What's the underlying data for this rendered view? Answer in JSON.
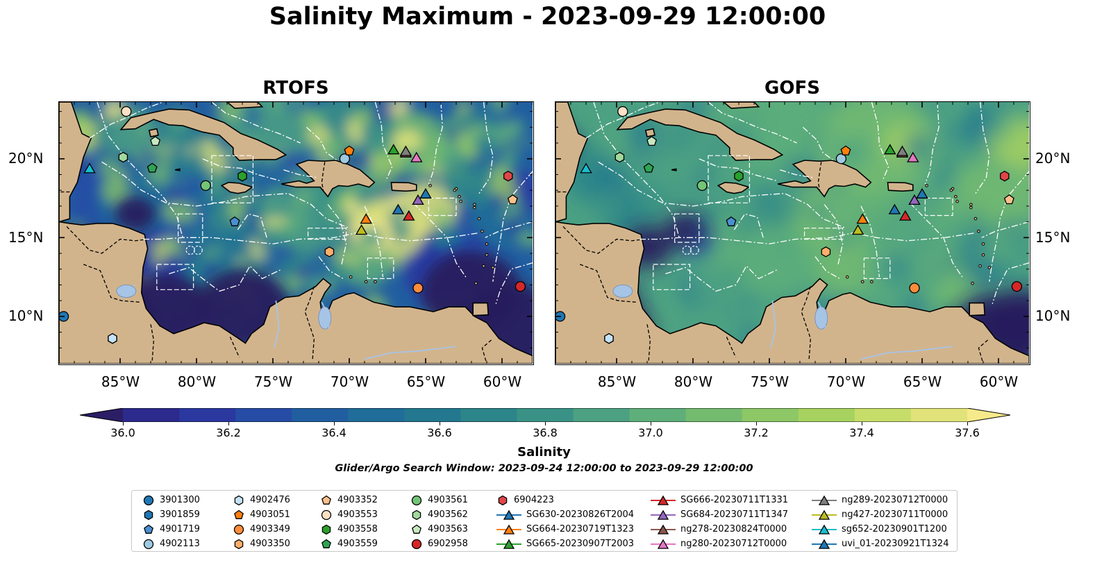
{
  "figure": {
    "title": "Salinity Maximum - 2023-09-29 12:00:00",
    "window_note": "Glider/Argo Search Window: 2023-09-24 12:00:00 to 2023-09-29 12:00:00"
  },
  "panels": [
    {
      "title": "RTOFS",
      "model": "RTOFS"
    },
    {
      "title": "GOFS",
      "model": "GOFS"
    }
  ],
  "map": {
    "lon_range": [
      -89,
      -58
    ],
    "lat_range": [
      7,
      23.6
    ],
    "x_ticks": [
      {
        "value": -85,
        "label": "85°W"
      },
      {
        "value": -80,
        "label": "80°W"
      },
      {
        "value": -75,
        "label": "75°W"
      },
      {
        "value": -70,
        "label": "70°W"
      },
      {
        "value": -65,
        "label": "65°W"
      },
      {
        "value": -60,
        "label": "60°W"
      }
    ],
    "y_ticks": [
      {
        "value": 10,
        "label": "10°N"
      },
      {
        "value": 15,
        "label": "15°N"
      },
      {
        "value": 20,
        "label": "20°N"
      }
    ],
    "land_color": "#d2b48c",
    "ocean_low_color": "#271a5e",
    "boundary_color": "#ffffff"
  },
  "colorbar": {
    "label": "Salinity",
    "min": 36.0,
    "max": 37.6,
    "extend": "both",
    "ticks": [
      "36.0",
      "36.2",
      "36.4",
      "36.6",
      "36.8",
      "37.0",
      "37.2",
      "37.4",
      "37.6"
    ],
    "colors": [
      "#2b1e66",
      "#2c2a8c",
      "#2a38a0",
      "#264ca6",
      "#215ea0",
      "#1f6d98",
      "#23788f",
      "#2c8589",
      "#3a9286",
      "#4ca182",
      "#5eaf7a",
      "#74bb70",
      "#8dc766",
      "#a7d25f",
      "#c6dd6a",
      "#e1e37a",
      "#f7ea8a"
    ]
  },
  "legend": {
    "entries": [
      {
        "label": "3901300",
        "marker": "circle",
        "color": "#1f77b4",
        "kind": "argo"
      },
      {
        "label": "3901859",
        "marker": "hexagon",
        "color": "#1f77b4",
        "kind": "argo"
      },
      {
        "label": "4901719",
        "marker": "pentagon",
        "color": "#4a90d0",
        "kind": "argo"
      },
      {
        "label": "4902113",
        "marker": "circle",
        "color": "#9ecae1",
        "kind": "argo"
      },
      {
        "label": "4902476",
        "marker": "hexagon",
        "color": "#c6e2f5",
        "kind": "argo"
      },
      {
        "label": "4903051",
        "marker": "pentagon",
        "color": "#ff7f0e",
        "kind": "argo"
      },
      {
        "label": "4903349",
        "marker": "circle",
        "color": "#fd8d3c",
        "kind": "argo"
      },
      {
        "label": "4903350",
        "marker": "hexagon",
        "color": "#fdae6b",
        "kind": "argo"
      },
      {
        "label": "4903352",
        "marker": "pentagon",
        "color": "#fdc08c",
        "kind": "argo"
      },
      {
        "label": "4903553",
        "marker": "circle",
        "color": "#fde0c5",
        "kind": "argo"
      },
      {
        "label": "4903558",
        "marker": "hexagon",
        "color": "#2ca02c",
        "kind": "argo"
      },
      {
        "label": "4903559",
        "marker": "pentagon",
        "color": "#31a354",
        "kind": "argo"
      },
      {
        "label": "4903561",
        "marker": "circle",
        "color": "#74c476",
        "kind": "argo"
      },
      {
        "label": "4903562",
        "marker": "hexagon",
        "color": "#a1d99b",
        "kind": "argo"
      },
      {
        "label": "4903563",
        "marker": "pentagon",
        "color": "#c7e9c0",
        "kind": "argo"
      },
      {
        "label": "6902958",
        "marker": "circle",
        "color": "#d62728",
        "kind": "argo"
      },
      {
        "label": "6904223",
        "marker": "hexagon",
        "color": "#e04548",
        "kind": "argo"
      },
      {
        "label": "SG630-20230826T2004",
        "marker": "triangle",
        "color": "#1f77b4",
        "kind": "glider"
      },
      {
        "label": "SG664-20230719T1323",
        "marker": "triangle",
        "color": "#ff7f0e",
        "kind": "glider"
      },
      {
        "label": "SG665-20230907T2003",
        "marker": "triangle",
        "color": "#2ca02c",
        "kind": "glider"
      },
      {
        "label": "SG666-20230711T1331",
        "marker": "triangle",
        "color": "#d62728",
        "kind": "glider"
      },
      {
        "label": "SG684-20230711T1347",
        "marker": "triangle",
        "color": "#9467bd",
        "kind": "glider"
      },
      {
        "label": "ng278-20230824T0000",
        "marker": "triangle",
        "color": "#8c564b",
        "kind": "glider"
      },
      {
        "label": "ng280-20230712T0000",
        "marker": "triangle",
        "color": "#e377c2",
        "kind": "glider"
      },
      {
        "label": "ng289-20230712T0000",
        "marker": "triangle",
        "color": "#7f7f7f",
        "kind": "glider"
      },
      {
        "label": "ng427-20230711T0000",
        "marker": "triangle",
        "color": "#bcbd22",
        "kind": "glider"
      },
      {
        "label": "sg652-20230901T1200",
        "marker": "triangle",
        "color": "#17becf",
        "kind": "glider"
      },
      {
        "label": "uvi_01-20230921T1324",
        "marker": "triangle",
        "color": "#1f77b4",
        "kind": "glider"
      }
    ]
  },
  "observations": [
    {
      "id": "3901300",
      "lon": -88.7,
      "lat": 10.0
    },
    {
      "id": "3901859",
      "lon": -85.5,
      "lat": 8.6
    },
    {
      "id": "4901719",
      "lon": -77.5,
      "lat": 16.0
    },
    {
      "id": "4902113",
      "lon": -70.3,
      "lat": 20.0
    },
    {
      "id": "4902476",
      "lon": -85.5,
      "lat": 8.6
    },
    {
      "id": "4903051",
      "lon": -70.0,
      "lat": 20.5
    },
    {
      "id": "4903349",
      "lon": -65.5,
      "lat": 11.8
    },
    {
      "id": "4903350",
      "lon": -71.3,
      "lat": 14.1
    },
    {
      "id": "4903352",
      "lon": -59.3,
      "lat": 17.4
    },
    {
      "id": "4903553",
      "lon": -84.6,
      "lat": 23.0
    },
    {
      "id": "4903558",
      "lon": -77.0,
      "lat": 18.9
    },
    {
      "id": "4903559",
      "lon": -82.9,
      "lat": 19.4
    },
    {
      "id": "4903561",
      "lon": -79.4,
      "lat": 18.3
    },
    {
      "id": "4903562",
      "lon": -84.8,
      "lat": 20.1
    },
    {
      "id": "4903563",
      "lon": -82.7,
      "lat": 21.1
    },
    {
      "id": "6902958",
      "lon": -58.8,
      "lat": 11.9
    },
    {
      "id": "6904223",
      "lon": -59.6,
      "lat": 18.9
    },
    {
      "id": "SG630-20230826T2004",
      "lon": -66.8,
      "lat": 16.8
    },
    {
      "id": "SG664-20230719T1323",
      "lon": -68.9,
      "lat": 16.2
    },
    {
      "id": "SG665-20230907T2003",
      "lon": -67.1,
      "lat": 20.6
    },
    {
      "id": "SG666-20230711T1331",
      "lon": -66.1,
      "lat": 16.4
    },
    {
      "id": "SG684-20230711T1347",
      "lon": -65.5,
      "lat": 17.4
    },
    {
      "id": "ng278-20230824T0000",
      "lon": -66.3,
      "lat": 20.4
    },
    {
      "id": "ng280-20230712T0000",
      "lon": -65.6,
      "lat": 20.1
    },
    {
      "id": "ng289-20230712T0000",
      "lon": -66.3,
      "lat": 20.5
    },
    {
      "id": "ng427-20230711T0000",
      "lon": -69.2,
      "lat": 15.5
    },
    {
      "id": "sg652-20230901T1200",
      "lon": -87.0,
      "lat": 19.4
    },
    {
      "id": "uvi_01-20230921T1324",
      "lon": -65.0,
      "lat": 17.8
    }
  ]
}
